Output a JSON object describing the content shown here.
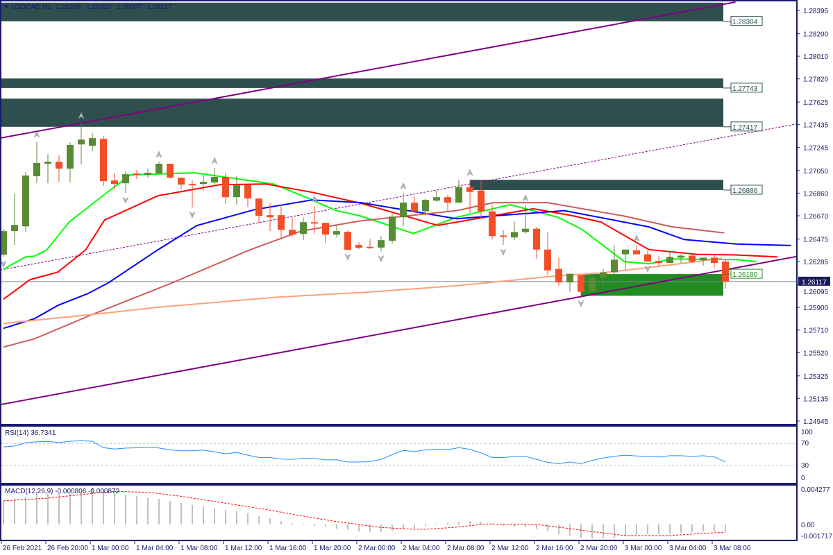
{
  "header": {
    "collapse_icon": "triangle-down-icon",
    "symbol_timeframe": "USDCAD,H1",
    "open": "1.26286",
    "high": "1.26310",
    "low": "1.26057",
    "close": "1.26117"
  },
  "colors": {
    "bull_candle": "#5a8a34",
    "bear_candle": "#f24e28",
    "zone_dark": "#2f4f4f",
    "zone_green": "#228b22",
    "frame": "#1a1a6e",
    "current_price_line": "#778899",
    "trendline": "#800080",
    "rsi_line": "#1e90ff",
    "macd_hist": "#c0c0c0",
    "macd_signal": "#ff0000"
  },
  "price_axis": {
    "labels": [
      "1.28395",
      "1.28200",
      "1.28010",
      "1.27820",
      "1.27625",
      "1.27435",
      "1.27245",
      "1.27050",
      "1.26860",
      "1.26670",
      "1.26475",
      "1.26285",
      "1.26095",
      "1.25900",
      "1.25710",
      "1.25520",
      "1.25325",
      "1.25135",
      "1.24945"
    ],
    "range": [
      1.24945,
      1.28395
    ],
    "current_price": "1.26117"
  },
  "time_axis": {
    "labels": [
      "26 Feb 2021",
      "26 Feb 20:00",
      "1 Mar 00:00",
      "1 Mar 04:00",
      "1 Mar 08:00",
      "1 Mar 12:00",
      "1 Mar 16:00",
      "1 Mar 20:00",
      "2 Mar 00:00",
      "2 Mar 04:00",
      "2 Mar 08:00",
      "2 Mar 12:00",
      "2 Mar 16:00",
      "2 Mar 20:00",
      "3 Mar 00:00",
      "3 Mar 04:00",
      "3 Mar 08:00"
    ],
    "label_bars": [
      0,
      4,
      8,
      12,
      16,
      20,
      24,
      28,
      32,
      36,
      40,
      44,
      48,
      52,
      56,
      60,
      64
    ]
  },
  "candles": [
    [
      1.26343,
      1.26558,
      1.26325,
      1.26541
    ],
    [
      1.26541,
      1.26855,
      1.26425,
      1.26593
    ],
    [
      1.26581,
      1.27037,
      1.26535,
      1.27008
    ],
    [
      1.27002,
      1.27293,
      1.26943,
      1.27113
    ],
    [
      1.27107,
      1.27188,
      1.26943,
      1.27124
    ],
    [
      1.27124,
      1.27176,
      1.26955,
      1.27066
    ],
    [
      1.27066,
      1.27287,
      1.26949,
      1.27264
    ],
    [
      1.27269,
      1.2745,
      1.27101,
      1.2731
    ],
    [
      1.27258,
      1.27363,
      1.27211,
      1.27322
    ],
    [
      1.27316,
      1.27339,
      1.2692,
      1.26961
    ],
    [
      1.26966,
      1.27031,
      1.2689,
      1.26937
    ],
    [
      1.26943,
      1.27042,
      1.26861,
      1.27019
    ],
    [
      1.27025,
      1.27054,
      1.26978,
      1.27013
    ],
    [
      1.27013,
      1.27066,
      1.2699,
      1.27031
    ],
    [
      1.27025,
      1.27124,
      1.27019,
      1.27107
    ],
    [
      1.27107,
      1.27107,
      1.26984,
      1.2699
    ],
    [
      1.2699,
      1.2699,
      1.2689,
      1.26932
    ],
    [
      1.26937,
      1.26966,
      1.26739,
      1.26932
    ],
    [
      1.26937,
      1.27013,
      1.26879,
      1.26955
    ],
    [
      1.26949,
      1.27072,
      1.2692,
      1.26996
    ],
    [
      1.26996,
      1.27031,
      1.26768,
      1.26826
    ],
    [
      1.26826,
      1.27002,
      1.26763,
      1.26926
    ],
    [
      1.26932,
      1.26932,
      1.26745,
      1.26815
    ],
    [
      1.26815,
      1.26815,
      1.26611,
      1.26669
    ],
    [
      1.26675,
      1.26774,
      1.26541,
      1.26657
    ],
    [
      1.26675,
      1.26762,
      1.26482,
      1.26552
    ],
    [
      1.26552,
      1.26657,
      1.26494,
      1.26512
    ],
    [
      1.26517,
      1.26657,
      1.26465,
      1.26616
    ],
    [
      1.26616,
      1.2675,
      1.26517,
      1.26605
    ],
    [
      1.26611,
      1.26611,
      1.26436,
      1.26512
    ],
    [
      1.26512,
      1.26593,
      1.26488,
      1.26541
    ],
    [
      1.26535,
      1.26546,
      1.26384,
      1.26384
    ],
    [
      1.26425,
      1.26448,
      1.26389,
      1.26401
    ],
    [
      1.26409,
      1.26477,
      1.26392,
      1.26398
    ],
    [
      1.26403,
      1.26499,
      1.2637,
      1.26465
    ],
    [
      1.2646,
      1.26691,
      1.26437,
      1.26663
    ],
    [
      1.26657,
      1.2686,
      1.26583,
      1.2678
    ],
    [
      1.2678,
      1.26831,
      1.26695,
      1.26707
    ],
    [
      1.26707,
      1.26814,
      1.26673,
      1.26803
    ],
    [
      1.26797,
      1.26882,
      1.26786,
      1.26826
    ],
    [
      1.26826,
      1.26848,
      1.26707,
      1.2678
    ],
    [
      1.2678,
      1.26972,
      1.2678,
      1.2691
    ],
    [
      1.2691,
      1.26972,
      1.26695,
      1.2687
    ],
    [
      1.26882,
      1.26966,
      1.26645,
      1.26707
    ],
    [
      1.26707,
      1.26758,
      1.26471,
      1.26499
    ],
    [
      1.26504,
      1.26549,
      1.26426,
      1.26493
    ],
    [
      1.26488,
      1.26623,
      1.26465,
      1.26533
    ],
    [
      1.26533,
      1.26758,
      1.26521,
      1.26561
    ],
    [
      1.26561,
      1.26577,
      1.26307,
      1.26386
    ],
    [
      1.26386,
      1.26533,
      1.26171,
      1.26211
    ],
    [
      1.26223,
      1.26318,
      1.26082,
      1.2611
    ],
    [
      1.2611,
      1.26183,
      1.26031,
      1.26183
    ],
    [
      1.26171,
      1.26171,
      1.25992,
      1.26031
    ],
    [
      1.26031,
      1.26171,
      1.26031,
      1.26149
    ],
    [
      1.26149,
      1.26223,
      1.26048,
      1.26195
    ],
    [
      1.26195,
      1.2642,
      1.26177,
      1.26301
    ],
    [
      1.26346,
      1.26386,
      1.26217,
      1.26386
    ],
    [
      1.2638,
      1.2642,
      1.26346,
      1.26346
    ],
    [
      1.26346,
      1.2638,
      1.26285,
      1.26285
    ],
    [
      1.2629,
      1.2633,
      1.26245,
      1.26273
    ],
    [
      1.26273,
      1.26364,
      1.26273,
      1.26324
    ],
    [
      1.26318,
      1.26346,
      1.26273,
      1.26335
    ],
    [
      1.26335,
      1.26346,
      1.26273,
      1.26285
    ],
    [
      1.26296,
      1.26318,
      1.26251,
      1.26318
    ],
    [
      1.26318,
      1.26346,
      1.26229,
      1.26273
    ],
    [
      1.26286,
      1.2631,
      1.26057,
      1.26117
    ]
  ],
  "moving_averages": [
    {
      "color": "#00ff00",
      "points": [
        [
          0,
          1.2622
        ],
        [
          2,
          1.26325
        ],
        [
          2.8,
          1.26331
        ],
        [
          3.9,
          1.26384
        ],
        [
          5.9,
          1.26616
        ],
        [
          9.1,
          1.2685
        ],
        [
          11.4,
          1.27013
        ],
        [
          17.2,
          1.27031
        ],
        [
          24.3,
          1.26937
        ],
        [
          27.8,
          1.26803
        ],
        [
          29.9,
          1.26715
        ],
        [
          32.2,
          1.26667
        ],
        [
          36.9,
          1.26521
        ],
        [
          40.8,
          1.26657
        ],
        [
          45.6,
          1.26763
        ],
        [
          49.9,
          1.26657
        ],
        [
          52,
          1.26561
        ],
        [
          55.9,
          1.26285
        ],
        [
          58.1,
          1.26267
        ],
        [
          60.2,
          1.26307
        ],
        [
          66,
          1.26301
        ],
        [
          67.8,
          1.26285
        ]
      ]
    },
    {
      "color": "#ff0000",
      "points": [
        [
          0,
          1.25969
        ],
        [
          2.4,
          1.26133
        ],
        [
          4.9,
          1.26197
        ],
        [
          7.4,
          1.26384
        ],
        [
          9.1,
          1.26634
        ],
        [
          13.9,
          1.26838
        ],
        [
          19.5,
          1.26931
        ],
        [
          23.6,
          1.26937
        ],
        [
          27.8,
          1.26867
        ],
        [
          32.2,
          1.26775
        ],
        [
          39.1,
          1.26589
        ],
        [
          47.7,
          1.26729
        ],
        [
          51.1,
          1.26673
        ],
        [
          53.8,
          1.26617
        ],
        [
          58.1,
          1.26386
        ],
        [
          62.4,
          1.26346
        ],
        [
          66,
          1.26341
        ],
        [
          69.7,
          1.26324
        ]
      ]
    },
    {
      "color": "#0000ff",
      "points": [
        [
          0,
          1.25724
        ],
        [
          2.8,
          1.25806
        ],
        [
          4.9,
          1.25917
        ],
        [
          7.6,
          1.26016
        ],
        [
          9.5,
          1.2611
        ],
        [
          13.9,
          1.26384
        ],
        [
          17.4,
          1.26587
        ],
        [
          22.6,
          1.26721
        ],
        [
          27.8,
          1.26803
        ],
        [
          32.2,
          1.2678
        ],
        [
          40.8,
          1.26645
        ],
        [
          50.5,
          1.26713
        ],
        [
          58.1,
          1.26577
        ],
        [
          61.3,
          1.2647
        ],
        [
          66,
          1.26432
        ],
        [
          70.9,
          1.2642
        ]
      ]
    },
    {
      "color": "#cd5c5c",
      "points": [
        [
          0,
          1.25567
        ],
        [
          2.8,
          1.25637
        ],
        [
          8,
          1.25841
        ],
        [
          15.1,
          1.26103
        ],
        [
          22.2,
          1.26384
        ],
        [
          26.8,
          1.26541
        ],
        [
          32.2,
          1.26628
        ],
        [
          40.8,
          1.26713
        ],
        [
          44.1,
          1.2678
        ],
        [
          49,
          1.2678
        ],
        [
          55.9,
          1.26667
        ],
        [
          60.2,
          1.26577
        ],
        [
          64.9,
          1.26526
        ]
      ]
    },
    {
      "color": "#ffa07a",
      "points": [
        [
          0,
          1.25765
        ],
        [
          8,
          1.25841
        ],
        [
          14.3,
          1.25905
        ],
        [
          24.7,
          1.25987
        ],
        [
          32.2,
          1.26025
        ],
        [
          40.8,
          1.26082
        ],
        [
          49.4,
          1.26161
        ],
        [
          53.8,
          1.26189
        ],
        [
          58.1,
          1.26234
        ],
        [
          62.4,
          1.26285
        ],
        [
          64.7,
          1.26313
        ]
      ]
    }
  ],
  "trendlines": [
    {
      "style": "solid",
      "points": [
        [
          -0.3,
          1.27322
        ],
        [
          65.9,
          1.28465
        ]
      ]
    },
    {
      "style": "solid",
      "points": [
        [
          -0.3,
          1.25083
        ],
        [
          71.6,
          1.26331
        ]
      ]
    },
    {
      "style": "dotted",
      "points": [
        [
          -0.3,
          1.26214
        ],
        [
          71.6,
          1.27444
        ]
      ]
    }
  ],
  "zones": [
    {
      "top": 1.2846,
      "bottom": 1.28304,
      "label": "1.28304",
      "label_price": 1.28304,
      "color": "#2f4f4f",
      "start_bar": null
    },
    {
      "top": 1.27823,
      "bottom": 1.27743,
      "label": "1.27743",
      "label_price": 1.27743,
      "color": "#2f4f4f",
      "start_bar": null
    },
    {
      "top": 1.27654,
      "bottom": 1.27417,
      "label": "1.27417",
      "label_price": 1.27417,
      "color": "#2f4f4f",
      "start_bar": null
    },
    {
      "top": 1.26972,
      "bottom": 1.26886,
      "label": "1.26886",
      "label_price": 1.26886,
      "color": "#2f4f4f",
      "start_bar": 42
    },
    {
      "top": 1.2618,
      "bottom": 1.25998,
      "label": "1.26180",
      "label_price": 1.2618,
      "color": "#228b22",
      "start_bar": 52
    }
  ],
  "fractals": {
    "up_bars": [
      3,
      7,
      14,
      19,
      28,
      36,
      42,
      47,
      57
    ],
    "down_bars": [
      0,
      11,
      17,
      31,
      34,
      45,
      52,
      58
    ]
  },
  "rsi": {
    "title": "RSI(14) 36.7341",
    "levels": [
      70,
      30
    ],
    "axis_labels": [
      "100",
      "70",
      "30",
      "0"
    ],
    "axis_values": [
      100,
      70,
      30,
      0
    ],
    "values": [
      63.8,
      65.5,
      71.5,
      73,
      73.8,
      71.8,
      74,
      75.1,
      74,
      62.5,
      60,
      61.8,
      62.3,
      63,
      62,
      58.5,
      57,
      57,
      58.3,
      55,
      51.5,
      54,
      49,
      44.9,
      44.9,
      42,
      41.5,
      43.1,
      43,
      40.5,
      40.6,
      36.6,
      36.8,
      37.3,
      41.5,
      50,
      57.5,
      55.5,
      58.5,
      59.8,
      58.9,
      62.5,
      59.5,
      53,
      44.8,
      44.8,
      46.8,
      46.8,
      41.5,
      36,
      33.6,
      36.8,
      33.6,
      39.5,
      44,
      47,
      49,
      47.5,
      46.8,
      45.8,
      48,
      48,
      46.8,
      48,
      46,
      36.7
    ]
  },
  "macd": {
    "title": "MACD(12,26,9) -0.000806 -0.000872",
    "axis_labels": [
      "0.004277",
      "0.00",
      "-0.001717"
    ],
    "axis_values": [
      0.004277,
      0,
      -0.001717
    ],
    "histogram": [
      0.0026,
      0.00277,
      0.00305,
      0.00336,
      0.00336,
      0.00341,
      0.00341,
      0.00361,
      0.00407,
      0.00387,
      0.00354,
      0.00328,
      0.00313,
      0.0029,
      0.00282,
      0.0026,
      0.00237,
      0.00214,
      0.00198,
      0.00183,
      0.0016,
      0.00145,
      0.00125,
      0.00092,
      0.00069,
      0.00038,
      0.00015,
      2e-05,
      -0.00015,
      -0.00028,
      -0.00046,
      -0.00059,
      -0.00076,
      -0.00084,
      -0.00084,
      -0.00074,
      -0.00051,
      -0.00038,
      -0.00023,
      -8e-05,
      0.00018,
      0.00031,
      0.00038,
      0.00031,
      0.0001,
      -0.00015,
      -0.00023,
      -0.00031,
      -0.00046,
      -0.00076,
      -0.00107,
      -0.00122,
      -0.00145,
      -0.00153,
      -0.00153,
      -0.00145,
      -0.0013,
      -0.00115,
      -0.00107,
      -0.00107,
      -0.00099,
      -0.00092,
      -0.00084,
      -0.00076,
      -0.00076,
      -0.000806
    ],
    "signal": [
      [
        0,
        0.0026
      ],
      [
        4,
        0.0029
      ],
      [
        8,
        0.00341
      ],
      [
        10,
        0.00364
      ],
      [
        13,
        0.00354
      ],
      [
        16,
        0.0031
      ],
      [
        20,
        0.00234
      ],
      [
        24,
        0.00158
      ],
      [
        26,
        0.00112
      ],
      [
        30,
        0.00031
      ],
      [
        34,
        -0.00033
      ],
      [
        37,
        -0.00053
      ],
      [
        38,
        -0.00053
      ],
      [
        40.5,
        -0.00033
      ],
      [
        43.4,
        5e-05
      ],
      [
        48,
        0
      ],
      [
        51,
        -0.00046
      ],
      [
        53,
        -0.00079
      ],
      [
        56,
        -0.00122
      ],
      [
        60,
        -0.00122
      ],
      [
        63,
        -0.00097
      ],
      [
        65,
        -0.000872
      ]
    ]
  }
}
